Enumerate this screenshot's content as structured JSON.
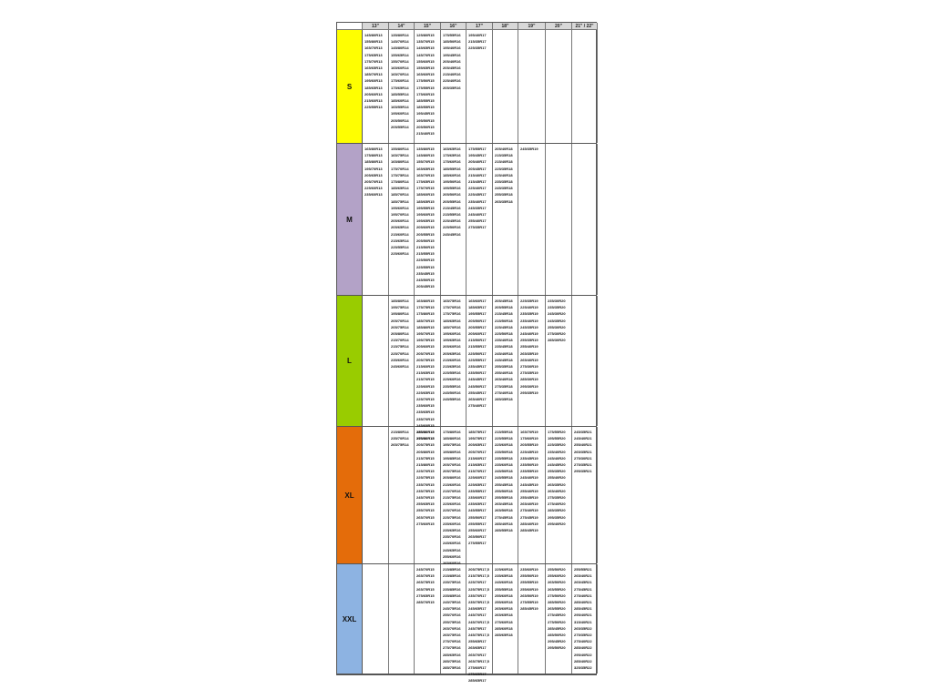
{
  "columns": [
    "13\"",
    "14\"",
    "15\"",
    "16\"",
    "17\"",
    "18\"",
    "19\"",
    "20\"",
    "21\" / 22\""
  ],
  "rows": [
    {
      "label": "S",
      "color": "#ffff00",
      "cells": [
        [
          "145/80R13",
          "155/80R13",
          "165/70R13",
          "175/65R13",
          "175/70R13",
          "165/65R13",
          "185/70R13",
          "195/60R13",
          "185/65R13",
          "205/60R13",
          "215/60R13",
          "225/55R13"
        ],
        [
          "135/80R14",
          "145/70R14",
          "145/80R14",
          "155/65R14",
          "155/70R14",
          "165/60R14",
          "165/70R14",
          "175/60R14",
          "175/65R14",
          "185/55R14",
          "185/60R14",
          "165/55R14",
          "195/60R14",
          "205/50R14",
          "205/55R14"
        ],
        [
          "125/80R15",
          "135/70R15",
          "145/65R15",
          "145/70R15",
          "155/60R15",
          "155/65R15",
          "165/60R15",
          "175/50R15",
          "175/55R15",
          "175/60R15",
          "185/55R15",
          "185/55R15",
          "195/45R15",
          "195/50R15",
          "205/50R15",
          "215/40R15"
        ],
        [
          "175/55R16",
          "185/50R16",
          "195/40R16",
          "195/45R16",
          "205/40R16",
          "205/45R16",
          "215/40R16",
          "225/40R16",
          "205/35R16"
        ],
        [
          "195/40R17",
          "215/35R17",
          "225/35R17"
        ],
        [],
        [],
        [],
        []
      ]
    },
    {
      "label": "M",
      "color": "#b3a2c7",
      "cells": [
        [
          "165/80R13",
          "175/80R13",
          "185/80R13",
          "195/70R13",
          "205/65R13",
          "205/70R13",
          "225/60R13",
          "235/60R13"
        ],
        [
          "155/80R14",
          "165/75R14",
          "165/80R14",
          "175/70R14",
          "175/75R14",
          "175/80R14",
          "185/65R14",
          "185/70R14",
          "185/75R14",
          "195/60R14",
          "195/70R14",
          "205/60R14",
          "205/65R14",
          "215/60R14",
          "215/65R14",
          "225/55R14",
          "225/60R14"
        ],
        [
          "135/80R15",
          "145/80R15",
          "155/70R15",
          "165/65R15",
          "165/70R15",
          "175/65R15",
          "175/70R15",
          "185/60R15",
          "185/65R15",
          "195/55R15",
          "195/60R15",
          "195/65R15",
          "205/60R15",
          "205/55R15",
          "205/50R15",
          "215/50R15",
          "215/55R15",
          "225/50R15",
          "225/55R15",
          "235/45R15",
          "245/50R15",
          "205/45R15"
        ],
        [
          "165/65R16",
          "175/65R16",
          "175/60R16",
          "185/55R16",
          "185/60R16",
          "195/50R16",
          "195/55R16",
          "205/50R16",
          "205/55R16",
          "215/45R16",
          "215/55R16",
          "225/45R16",
          "225/50R16",
          "245/45R16"
        ],
        [
          "175/55R17",
          "195/45R17",
          "205/40R17",
          "205/45R17",
          "215/40R17",
          "215/45R17",
          "225/40R17",
          "225/45R17",
          "235/40R17",
          "245/35R17",
          "245/40R17",
          "255/40R17",
          "275/35R17"
        ],
        [
          "205/40R18",
          "215/35R18",
          "215/40R18",
          "225/35R18",
          "225/40R18",
          "235/35R18",
          "245/35R18",
          "255/35R18",
          "265/35R18"
        ],
        [
          "245/35R19"
        ],
        [],
        []
      ]
    },
    {
      "label": "L",
      "color": "#99cc00",
      "cells": [
        [],
        [
          "185/80R14",
          "195/75R14",
          "195/80R14",
          "205/70R14",
          "205/75R14",
          "205/80R14",
          "215/70R14",
          "215/75R14",
          "225/70R14",
          "235/60R14",
          "245/60R14"
        ],
        [
          "165/80R15",
          "175/75R15",
          "175/80R15",
          "185/70R15",
          "185/80R15",
          "195/70R15",
          "195/75R15",
          "205/60R15",
          "205/70R15",
          "205/75R15",
          "215/60R15",
          "215/65R15",
          "215/70R15",
          "225/60R15",
          "225/65R15",
          "225/70R15",
          "235/60R15",
          "235/65R15",
          "235/70R15",
          "245/60R15",
          "255/60R15",
          "275/60R15"
        ],
        [
          "165/75R16",
          "175/70R16",
          "175/75R16",
          "185/65R16",
          "185/70R16",
          "195/60R16",
          "195/65R16",
          "205/60R16",
          "205/65R16",
          "215/60R16",
          "215/65R16",
          "225/55R16",
          "225/60R16",
          "235/55R16",
          "245/50R16",
          "245/55R16"
        ],
        [
          "165/60R17",
          "185/65R17",
          "195/55R17",
          "205/50R17",
          "205/55R17",
          "205/60R17",
          "215/50R17",
          "215/55R17",
          "225/50R17",
          "225/55R17",
          "235/45R17",
          "235/50R17",
          "245/45R17",
          "245/50R17",
          "255/45R17",
          "265/40R17",
          "275/40R17"
        ],
        [
          "205/45R18",
          "205/55R18",
          "215/45R18",
          "215/50R18",
          "225/45R18",
          "225/50R18",
          "235/40R18",
          "235/45R18",
          "245/40R18",
          "245/45R18",
          "255/35R18",
          "255/40R18",
          "265/40R18",
          "275/35R18",
          "275/40R18",
          "285/35R18"
        ],
        [
          "225/35R19",
          "225/40R19",
          "235/35R19",
          "235/40R19",
          "245/35R19",
          "245/40R19",
          "255/35R19",
          "255/40R19",
          "265/35R19",
          "265/40R19",
          "275/30R19",
          "275/35R19",
          "285/30R19",
          "295/30R19",
          "295/35R19"
        ],
        [
          "235/30R20",
          "235/35R20",
          "245/30R20",
          "245/35R20",
          "255/30R20",
          "275/30R20",
          "285/30R20"
        ],
        []
      ]
    },
    {
      "label": "XL",
      "color": "#e46c0a",
      "cells": [
        [],
        [
          "215/80R14",
          "235/70R14",
          "265/75R14"
        ],
        [
          "185/80R15",
          "195/80R15",
          "205/75R15",
          "205/80R15",
          "215/75R15",
          "215/80R15",
          "225/70R15",
          "225/75R15",
          "235/70R15",
          "235/75R15",
          "245/70R15",
          "255/65R15",
          "255/70R15",
          "265/70R15",
          "275/60R15"
        ],
        [
          "175/80R16",
          "185/80R16",
          "195/75R16",
          "195/80R16",
          "195/85R16",
          "205/70R16",
          "205/75R16",
          "205/80R16",
          "215/60R16",
          "215/70R16",
          "215/75R16",
          "225/60R16",
          "225/70R16",
          "225/75R16",
          "235/60R16",
          "235/65R16",
          "235/70R16",
          "245/60R16",
          "245/65R16",
          "255/60R16",
          "265/60R16"
        ],
        [
          "185/75R17",
          "195/75R17",
          "205/65R17",
          "205/70R17",
          "215/60R17",
          "215/65R17",
          "215/70R17",
          "225/60R17",
          "225/65R17",
          "235/55R17",
          "235/60R17",
          "235/65R17",
          "245/55R17",
          "255/50R17",
          "255/55R17",
          "255/60R17",
          "265/50R17",
          "275/55R17"
        ],
        [
          "215/55R18",
          "225/55R18",
          "225/60R18",
          "235/50R18",
          "235/55R18",
          "235/60R18",
          "245/50R18",
          "245/55R18",
          "255/45R18",
          "255/50R18",
          "255/55R18",
          "265/45R18",
          "265/50R18",
          "275/45R18",
          "285/40R18",
          "285/55R18"
        ],
        [
          "165/70R19",
          "175/60R19",
          "205/55R19",
          "225/45R19",
          "235/45R19",
          "235/50R19",
          "235/55R19",
          "245/40R19",
          "245/45R19",
          "255/40R19",
          "255/45R19",
          "265/40R19",
          "275/40R19",
          "275/45R19",
          "285/40R19",
          "285/45R19"
        ],
        [
          "175/55R20",
          "195/55R20",
          "225/35R20",
          "235/40R20",
          "245/40R20",
          "245/45R20",
          "255/35R20",
          "255/40R20",
          "265/35R20",
          "265/40R20",
          "275/35R20",
          "275/40R20",
          "285/35R20",
          "295/35R20",
          "295/40R20"
        ],
        [
          "245/35R21",
          "245/40R21",
          "255/40R21",
          "265/35R21",
          "275/30R21",
          "275/35R21",
          "295/35R21"
        ]
      ]
    },
    {
      "label": "XXL",
      "color": "#8db3e2",
      "cells": [
        [],
        [],
        [
          "245/70R15",
          "265/70R15",
          "265/75R15",
          "265/75R15",
          "275/65R15",
          "285/70R15"
        ],
        [
          "215/85R16",
          "215/85R16",
          "235/75R16",
          "235/85R16",
          "235/85R16",
          "245/75R16",
          "245/75R16",
          "255/70R16",
          "255/75R16",
          "265/70R16",
          "265/75R16",
          "275/70R16",
          "275/75R16",
          "285/65R16",
          "285/75R16",
          "285/75R16"
        ],
        [
          "205/75R17,5",
          "215/75R17,5",
          "225/70R17",
          "225/75R17,5",
          "235/70R17",
          "235/75R17,5",
          "245/65R17",
          "245/70R17",
          "245/70R17,5",
          "245/75R17",
          "245/75R17,5",
          "255/65R17",
          "265/65R17",
          "265/70R17",
          "265/75R17,5",
          "275/60R17",
          "275/65R17",
          "285/65R17"
        ],
        [
          "225/60R18",
          "235/65R18",
          "245/60R18",
          "255/55R18",
          "255/60R18",
          "255/60R18",
          "265/60R18",
          "265/65R18",
          "275/60R18",
          "285/60R18",
          "285/65R18"
        ],
        [
          "235/60R19",
          "255/50R19",
          "255/55R19",
          "255/60R19",
          "265/50R19",
          "275/55R19",
          "285/45R19"
        ],
        [
          "255/50R20",
          "255/60R20",
          "265/50R20",
          "265/55R20",
          "275/50R20",
          "285/50R20",
          "265/55R20",
          "275/45R20",
          "275/50R20",
          "285/45R20",
          "285/50R20",
          "295/45R20",
          "295/50R20"
        ],
        [
          "255/55R21",
          "265/40R21",
          "265/45R21",
          "275/45R21",
          "275/40R21",
          "285/40R21",
          "285/45R21",
          "295/40R21",
          "315/40R21",
          "265/35R22",
          "275/35R22",
          "275/40R22",
          "285/40R22",
          "295/40R22",
          "285/40R22",
          "325/35R22"
        ]
      ]
    }
  ]
}
